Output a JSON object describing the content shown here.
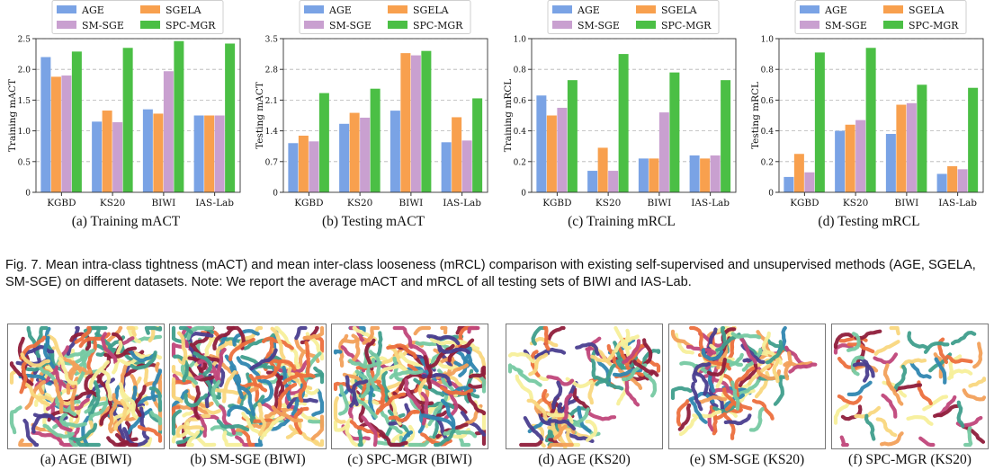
{
  "colors": {
    "AGE": "#7aa3e5",
    "SGELA": "#f8a04e",
    "SM-SGE": "#c9a0d0",
    "SPC-MGR": "#4bbf45"
  },
  "legend": [
    "AGE",
    "SGELA",
    "SM-SGE",
    "SPC-MGR"
  ],
  "chart_data": [
    {
      "type": "bar",
      "caption": "(a)  Training mACT",
      "ylabel": "Training mACT",
      "categories": [
        "KGBD",
        "KS20",
        "BIWI",
        "IAS-Lab"
      ],
      "ylim": [
        0,
        2.5
      ],
      "yticks": [
        "0",
        "0.5",
        "1.0",
        "1.5",
        "2.0",
        "2.5"
      ],
      "ytick_values": [
        0,
        0.5,
        1.0,
        1.5,
        2.0,
        2.5
      ],
      "grid": "horizontal dashed",
      "legend_position": "top",
      "series": [
        {
          "name": "AGE",
          "values": [
            2.2,
            1.15,
            1.35,
            1.25
          ]
        },
        {
          "name": "SGELA",
          "values": [
            1.88,
            1.33,
            1.28,
            1.25
          ]
        },
        {
          "name": "SM-SGE",
          "values": [
            1.9,
            1.14,
            1.97,
            1.25
          ]
        },
        {
          "name": "SPC-MGR",
          "values": [
            2.29,
            2.35,
            2.46,
            2.42
          ]
        }
      ]
    },
    {
      "type": "bar",
      "caption": "(b)  Testing mACT",
      "ylabel": "Testing mACT",
      "categories": [
        "KGBD",
        "KS20",
        "BIWI",
        "IAS-Lab"
      ],
      "ylim": [
        0,
        3.5
      ],
      "yticks": [
        "0",
        "0.7",
        "1.4",
        "2.1",
        "2.8",
        "3.5"
      ],
      "ytick_values": [
        0,
        0.7,
        1.4,
        2.1,
        2.8,
        3.5
      ],
      "grid": "horizontal dashed",
      "legend_position": "top",
      "series": [
        {
          "name": "AGE",
          "values": [
            1.12,
            1.56,
            1.86,
            1.14
          ]
        },
        {
          "name": "SGELA",
          "values": [
            1.29,
            1.81,
            3.17,
            1.71
          ]
        },
        {
          "name": "SM-SGE",
          "values": [
            1.16,
            1.7,
            3.12,
            1.18
          ]
        },
        {
          "name": "SPC-MGR",
          "values": [
            2.26,
            2.36,
            3.22,
            2.14
          ]
        }
      ]
    },
    {
      "type": "bar",
      "caption": "(c)  Training mRCL",
      "ylabel": "Training mRCL",
      "categories": [
        "KGBD",
        "KS20",
        "BIWI",
        "IAS-Lab"
      ],
      "ylim": [
        0,
        1.0
      ],
      "yticks": [
        "0",
        "0.2",
        "0.4",
        "0.6",
        "0.8",
        "1.0"
      ],
      "ytick_values": [
        0,
        0.2,
        0.4,
        0.6,
        0.8,
        1.0
      ],
      "grid": "horizontal dashed",
      "legend_position": "top",
      "series": [
        {
          "name": "AGE",
          "values": [
            0.63,
            0.14,
            0.22,
            0.24
          ]
        },
        {
          "name": "SGELA",
          "values": [
            0.5,
            0.29,
            0.22,
            0.22
          ]
        },
        {
          "name": "SM-SGE",
          "values": [
            0.55,
            0.14,
            0.52,
            0.24
          ]
        },
        {
          "name": "SPC-MGR",
          "values": [
            0.73,
            0.9,
            0.78,
            0.73
          ]
        }
      ]
    },
    {
      "type": "bar",
      "caption": "(d)  Testing mRCL",
      "ylabel": "Testing mRCL",
      "categories": [
        "KGBD",
        "KS20",
        "BIWI",
        "IAS-Lab"
      ],
      "ylim": [
        0,
        1.0
      ],
      "yticks": [
        "0",
        "0.2",
        "0.4",
        "0.6",
        "0.8",
        "1.0"
      ],
      "ytick_values": [
        0,
        0.2,
        0.4,
        0.6,
        0.8,
        1.0
      ],
      "grid": "horizontal dashed",
      "legend_position": "top",
      "series": [
        {
          "name": "AGE",
          "values": [
            0.1,
            0.4,
            0.38,
            0.12
          ]
        },
        {
          "name": "SGELA",
          "values": [
            0.25,
            0.44,
            0.57,
            0.17
          ]
        },
        {
          "name": "SM-SGE",
          "values": [
            0.13,
            0.47,
            0.58,
            0.15
          ]
        },
        {
          "name": "SPC-MGR",
          "values": [
            0.91,
            0.94,
            0.7,
            0.68
          ]
        }
      ]
    }
  ],
  "figure_caption": "Fig. 7. Mean intra-class tightness (mACT) and mean inter-class looseness (mRCL) comparison with existing self-supervised and unsupervised methods (AGE, SGELA, SM-SGE) on different datasets. Note: We report the average mACT and mRCL of all testing sets of BIWI and IAS-Lab.",
  "tsne_captions": [
    "(a)  AGE (BIWI)",
    "(b)  SM-SGE (BIWI)",
    "(c)  SPC-MGR (BIWI)",
    "(d)  AGE (KS20)",
    "(e)  SM-SGE (KS20)",
    "(f)  SPC-MGR (KS20)"
  ],
  "tsne_palette": [
    "#f7ef9a",
    "#ec6f3d",
    "#4a3e8f",
    "#2f86b0",
    "#8f1d3b",
    "#76c9a2",
    "#f2a05a",
    "#c0467a",
    "#f9d77e",
    "#3f9e8c"
  ]
}
